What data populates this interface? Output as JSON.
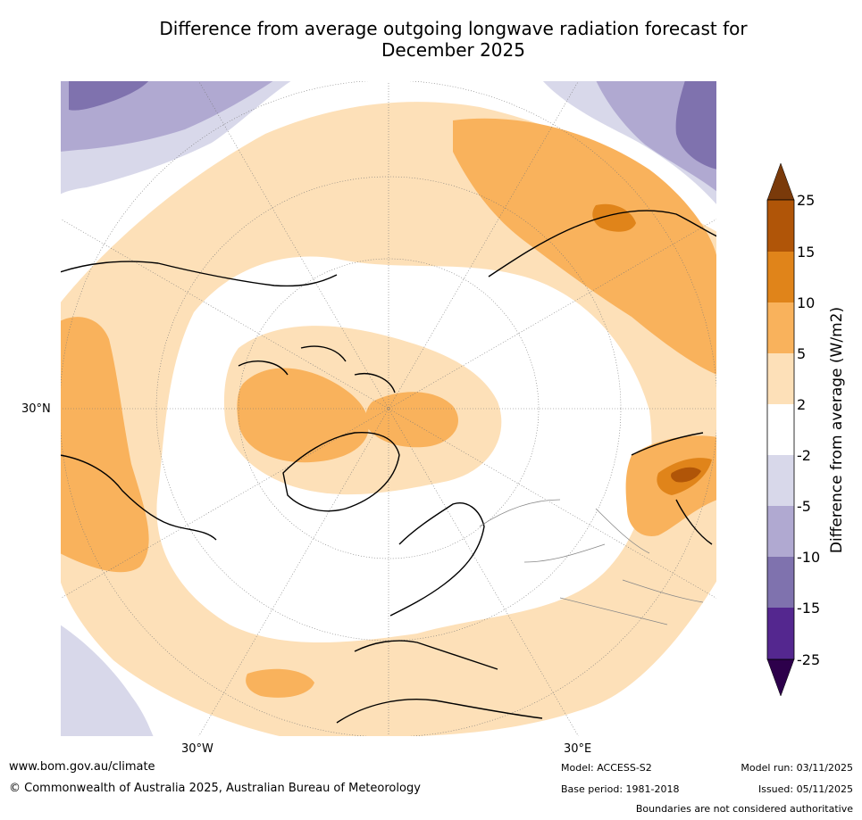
{
  "title_line1": "Difference from average outgoing longwave radiation forecast for",
  "title_line2": "December 2025",
  "map": {
    "labels": {
      "lon_w": "30°W",
      "lon_e": "30°E",
      "lat": "30°N"
    }
  },
  "colorbar": {
    "label": "Difference from average (W/m2)",
    "ticks": [
      "25",
      "15",
      "10",
      "5",
      "2",
      "-2",
      "-5",
      "-10",
      "-15",
      "-25"
    ],
    "colors": {
      "c25plus": "#7a3a0a",
      "c15_25": "#b05508",
      "c10_15": "#e0841a",
      "c5_10": "#f9b25c",
      "c2_5": "#fde0b8",
      "cneutral": "#ffffff",
      "cm2_m5": "#d8d8ea",
      "cm5_m10": "#b0a9d1",
      "cm10_m15": "#7f72ae",
      "cm15_m25": "#54278f",
      "cm25minus": "#2d004b"
    }
  },
  "footer": {
    "website": "www.bom.gov.au/climate",
    "copyright": "© Commonwealth of Australia 2025, Australian Bureau of Meteorology",
    "model": "Model: ACCESS-S2",
    "base_period": "Base period: 1981-2018",
    "model_run": "Model run: 03/11/2025",
    "issued": "Issued: 05/11/2025",
    "boundaries": "Boundaries are not considered authoritative"
  }
}
